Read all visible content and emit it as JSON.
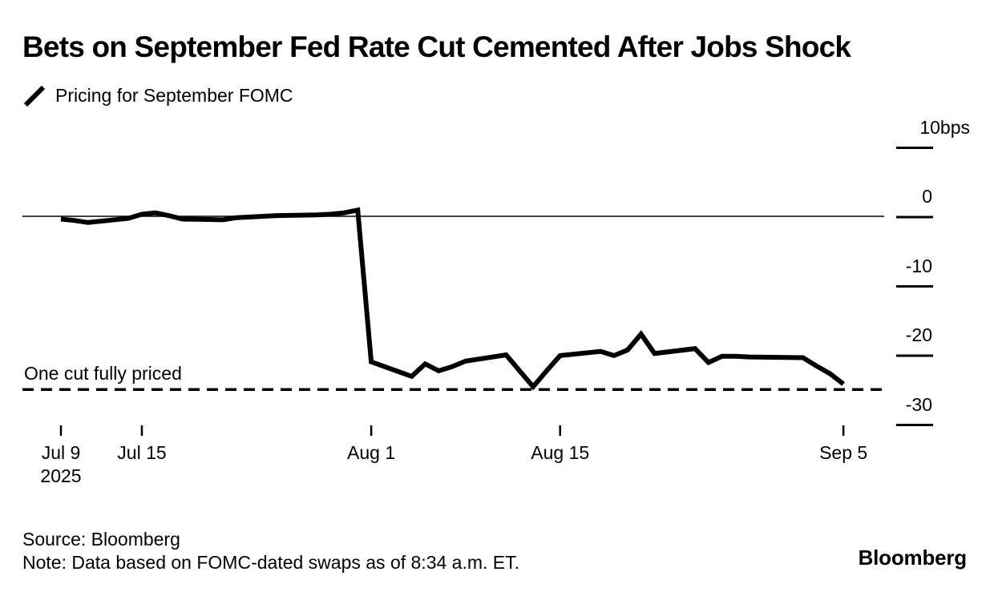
{
  "header": {
    "title": "Bets on September Fed Rate Cut Cemented After Jobs Shock"
  },
  "legend": {
    "label": "Pricing for September FOMC",
    "marker": "slash-line",
    "color": "#000000"
  },
  "chart_data": {
    "type": "line",
    "title": "Bets on September Fed Rate Cut Cemented After Jobs Shock",
    "subtitle": "Pricing for September FOMC",
    "xlabel": "",
    "ylabel": "bps",
    "ylim": [
      -30,
      10
    ],
    "grid": false,
    "legend_position": "top-left",
    "line_color": "#000000",
    "series": [
      {
        "name": "Pricing for September FOMC",
        "color": "#000000",
        "points": [
          {
            "date": "Jul 9",
            "day": 0,
            "value": -0.4
          },
          {
            "date": "Jul 10",
            "day": 1,
            "value": -0.6
          },
          {
            "date": "Jul 11",
            "day": 2,
            "value": -0.9
          },
          {
            "date": "Jul 14",
            "day": 5,
            "value": -0.3
          },
          {
            "date": "Jul 15",
            "day": 6,
            "value": 0.3
          },
          {
            "date": "Jul 16",
            "day": 7,
            "value": 0.5
          },
          {
            "date": "Jul 17",
            "day": 8,
            "value": 0.1
          },
          {
            "date": "Jul 18",
            "day": 9,
            "value": -0.4
          },
          {
            "date": "Jul 21",
            "day": 12,
            "value": -0.5
          },
          {
            "date": "Jul 22",
            "day": 13,
            "value": -0.2
          },
          {
            "date": "Jul 23",
            "day": 14,
            "value": -0.1
          },
          {
            "date": "Jul 24",
            "day": 15,
            "value": 0.0
          },
          {
            "date": "Jul 25",
            "day": 16,
            "value": 0.1
          },
          {
            "date": "Jul 28",
            "day": 19,
            "value": 0.2
          },
          {
            "date": "Jul 29",
            "day": 20,
            "value": 0.3
          },
          {
            "date": "Jul 30",
            "day": 21,
            "value": 0.5
          },
          {
            "date": "Jul 31",
            "day": 22,
            "value": 0.9
          },
          {
            "date": "Aug 1",
            "day": 23,
            "value": -21.0
          },
          {
            "date": "Aug 4",
            "day": 26,
            "value": -23.1
          },
          {
            "date": "Aug 5",
            "day": 27,
            "value": -21.3
          },
          {
            "date": "Aug 6",
            "day": 28,
            "value": -22.3
          },
          {
            "date": "Aug 7",
            "day": 29,
            "value": -21.7
          },
          {
            "date": "Aug 8",
            "day": 30,
            "value": -20.9
          },
          {
            "date": "Aug 11",
            "day": 33,
            "value": -20.0
          },
          {
            "date": "Aug 12",
            "day": 34,
            "value": -22.3
          },
          {
            "date": "Aug 13",
            "day": 35,
            "value": -24.6
          },
          {
            "date": "Aug 14",
            "day": 36,
            "value": -22.3
          },
          {
            "date": "Aug 15",
            "day": 37,
            "value": -20.1
          },
          {
            "date": "Aug 18",
            "day": 40,
            "value": -19.5
          },
          {
            "date": "Aug 19",
            "day": 41,
            "value": -20.1
          },
          {
            "date": "Aug 20",
            "day": 42,
            "value": -19.3
          },
          {
            "date": "Aug 21",
            "day": 43,
            "value": -17.0
          },
          {
            "date": "Aug 22",
            "day": 44,
            "value": -19.8
          },
          {
            "date": "Aug 25",
            "day": 47,
            "value": -19.1
          },
          {
            "date": "Aug 26",
            "day": 48,
            "value": -21.1
          },
          {
            "date": "Aug 27",
            "day": 49,
            "value": -20.2
          },
          {
            "date": "Aug 28",
            "day": 50,
            "value": -20.2
          },
          {
            "date": "Aug 29",
            "day": 51,
            "value": -20.3
          },
          {
            "date": "Sep 2",
            "day": 55,
            "value": -20.4
          },
          {
            "date": "Sep 3",
            "day": 56,
            "value": -21.6
          },
          {
            "date": "Sep 4",
            "day": 57,
            "value": -22.7
          },
          {
            "date": "Sep 5",
            "day": 58,
            "value": -24.2
          }
        ]
      }
    ],
    "x_axis": {
      "unit": "date",
      "range_days": [
        0,
        58
      ],
      "ticks": [
        {
          "label": "Jul 9",
          "sublabel": "2025",
          "day": 0
        },
        {
          "label": "Jul 15",
          "day": 6
        },
        {
          "label": "Aug 1",
          "day": 23
        },
        {
          "label": "Aug 15",
          "day": 37
        },
        {
          "label": "Sep 5",
          "day": 58
        }
      ]
    },
    "y_axis": {
      "unit": "bps",
      "zero_line": 0,
      "ticks": [
        {
          "label": "10bps",
          "value": 10
        },
        {
          "label": "0",
          "value": 0
        },
        {
          "label": "-10",
          "value": -10
        },
        {
          "label": "-20",
          "value": -20
        },
        {
          "label": "-30",
          "value": -30
        }
      ]
    },
    "annotation": {
      "label": "One cut fully priced",
      "value": -25,
      "style": "dashed"
    }
  },
  "footer": {
    "source": "Source: Bloomberg",
    "note": "Note: Data based on FOMC-dated swaps as of 8:34 a.m. ET.",
    "logo": "Bloomberg"
  }
}
